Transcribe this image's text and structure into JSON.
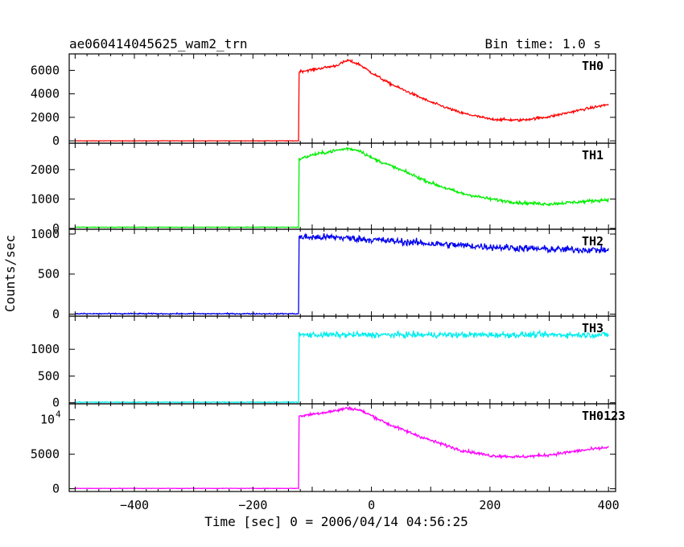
{
  "header": {
    "left": "ae060414045625_wam2_trn",
    "right": "Bin time: 1.0 s"
  },
  "xlabel": "Time [sec] 0 = 2006/04/14 04:56:25",
  "ylabel": "Counts/sec",
  "chart_data": {
    "type": "line",
    "xlim": [
      -510,
      412
    ],
    "x_ticks": [
      -400,
      -200,
      0,
      200,
      400
    ],
    "trigger_time": -122,
    "panels": [
      {
        "name": "TH0",
        "color": "#ff0000",
        "ylim": [
          -200,
          7400
        ],
        "y_ticks": [
          0,
          2000,
          4000,
          6000
        ],
        "y_tick_labels": [
          "0",
          "2000",
          "4000",
          "6000"
        ],
        "baseline": 0,
        "noise": 110,
        "profile": [
          [
            -122,
            5900
          ],
          [
            -100,
            6050
          ],
          [
            -60,
            6400
          ],
          [
            -40,
            6850
          ],
          [
            -20,
            6500
          ],
          [
            0,
            5800
          ],
          [
            30,
            4900
          ],
          [
            60,
            4200
          ],
          [
            100,
            3300
          ],
          [
            150,
            2400
          ],
          [
            200,
            1850
          ],
          [
            250,
            1750
          ],
          [
            300,
            2050
          ],
          [
            350,
            2600
          ],
          [
            400,
            3100
          ]
        ]
      },
      {
        "name": "TH1",
        "color": "#00ee00",
        "ylim": [
          -30,
          2900
        ],
        "y_ticks": [
          0,
          1000,
          2000
        ],
        "y_tick_labels": [
          "0",
          "1000",
          "2000"
        ],
        "baseline": 40,
        "noise": 55,
        "profile": [
          [
            -122,
            2350
          ],
          [
            -100,
            2500
          ],
          [
            -60,
            2650
          ],
          [
            -40,
            2720
          ],
          [
            -20,
            2650
          ],
          [
            0,
            2400
          ],
          [
            30,
            2150
          ],
          [
            60,
            1900
          ],
          [
            100,
            1550
          ],
          [
            150,
            1200
          ],
          [
            200,
            1000
          ],
          [
            250,
            870
          ],
          [
            300,
            830
          ],
          [
            350,
            900
          ],
          [
            400,
            980
          ]
        ]
      },
      {
        "name": "TH2",
        "color": "#0000ee",
        "ylim": [
          -25,
          1060
        ],
        "y_ticks": [
          0,
          500,
          1000
        ],
        "y_tick_labels": [
          "0",
          "500",
          "1000"
        ],
        "baseline": 5,
        "noise": 45,
        "profile": [
          [
            -122,
            960
          ],
          [
            -60,
            960
          ],
          [
            0,
            930
          ],
          [
            100,
            880
          ],
          [
            200,
            840
          ],
          [
            300,
            810
          ],
          [
            400,
            800
          ]
        ]
      },
      {
        "name": "TH3",
        "color": "#00eeee",
        "ylim": [
          -20,
          1620
        ],
        "y_ticks": [
          0,
          500,
          1000
        ],
        "y_tick_labels": [
          "0",
          "500",
          "1000"
        ],
        "baseline": 10,
        "noise": 55,
        "profile": [
          [
            -122,
            1270
          ],
          [
            0,
            1270
          ],
          [
            200,
            1270
          ],
          [
            400,
            1270
          ]
        ]
      },
      {
        "name": "TH0123",
        "color": "#ff00ff",
        "ylim": [
          -400,
          12300
        ],
        "y_ticks": [
          0,
          5000
        ],
        "y_tick_labels": [
          "0",
          "5000"
        ],
        "y_tick_sci": {
          "value": 10000,
          "mantissa": "10",
          "exponent": "4"
        },
        "baseline": 50,
        "noise": 220,
        "profile": [
          [
            -122,
            10500
          ],
          [
            -100,
            10800
          ],
          [
            -60,
            11300
          ],
          [
            -40,
            11700
          ],
          [
            -20,
            11400
          ],
          [
            0,
            10600
          ],
          [
            30,
            9300
          ],
          [
            60,
            8300
          ],
          [
            100,
            7000
          ],
          [
            150,
            5600
          ],
          [
            200,
            4800
          ],
          [
            250,
            4600
          ],
          [
            300,
            4900
          ],
          [
            350,
            5500
          ],
          [
            400,
            6000
          ]
        ]
      }
    ]
  }
}
